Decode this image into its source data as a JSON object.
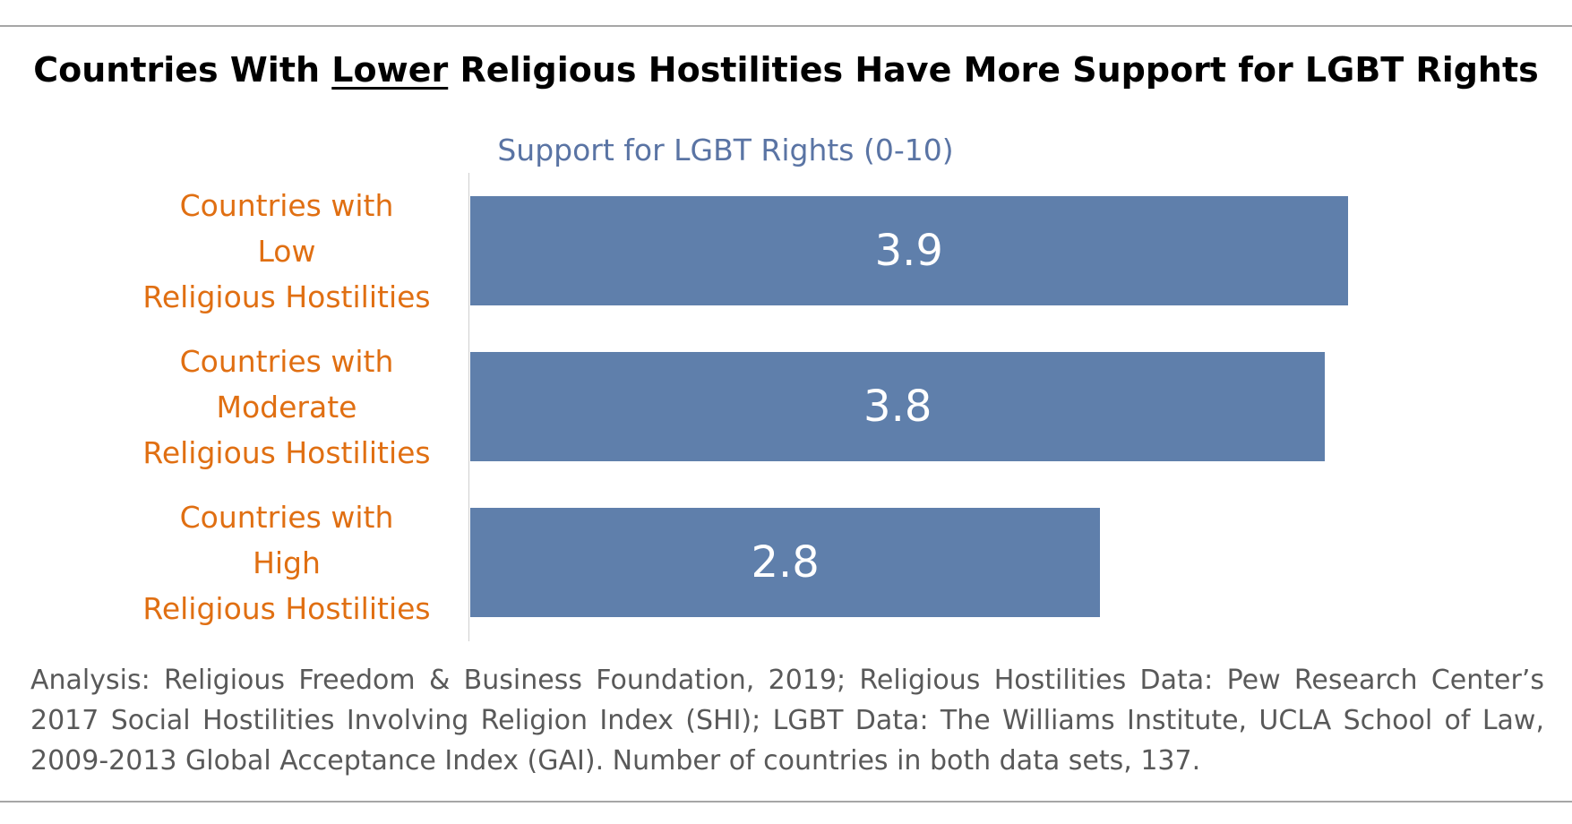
{
  "title": {
    "before": "Countries With ",
    "emphasis": "Lower",
    "after": " Religious Hostilities Have More Support for LGBT Rights"
  },
  "note": "Analysis: Religious Freedom & Business Foundation, 2019; Religious Hostilities Data: Pew Research Center’s 2017 Social Hostilities Involving Religion Index (SHI); LGBT Data: The Williams Institute, UCLA School of Law, 2009-2013 Global Acceptance Index (GAI). Number of countries in both data sets, 137.",
  "colors": {
    "bar": "#5f7fab",
    "category_label": "#e06f12",
    "axis_title": "#5a74a4",
    "bar_value": "#ffffff"
  },
  "chart_data": {
    "type": "bar",
    "orientation": "horizontal",
    "title": "Countries With Lower Religious Hostilities Have More Support for LGBT Rights",
    "xlabel": "Support for LGBT Rights (0-10)",
    "ylabel": "",
    "categories": [
      [
        "Countries with",
        "Low",
        "Religious Hostilities"
      ],
      [
        "Countries with",
        "Moderate",
        "Religious Hostilities"
      ],
      [
        "Countries with",
        "High",
        "Religious Hostilities"
      ]
    ],
    "values": [
      3.9,
      3.8,
      2.8
    ],
    "xlim": [
      0,
      4.3
    ],
    "grid": false,
    "legend": "none",
    "data_labels": "inside"
  }
}
